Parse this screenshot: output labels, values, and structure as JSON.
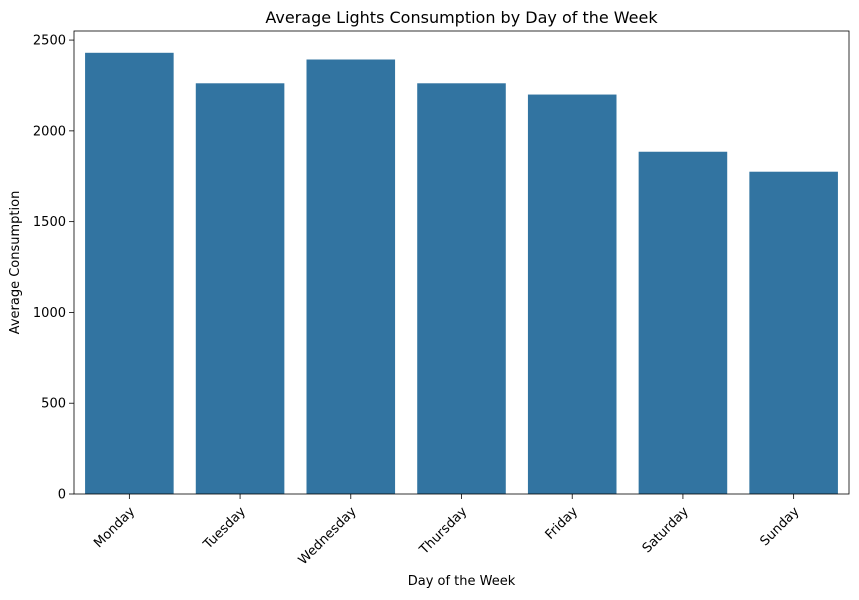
{
  "chart_data": {
    "type": "bar",
    "title": "Average Lights Consumption by Day of the Week",
    "xlabel": "Day of the Week",
    "ylabel": "Average Consumption",
    "categories": [
      "Monday",
      "Tuesday",
      "Wednesday",
      "Thursday",
      "Friday",
      "Saturday",
      "Sunday"
    ],
    "values": [
      2430,
      2262,
      2393,
      2262,
      2200,
      1885,
      1775
    ],
    "ylim": [
      0,
      2550
    ],
    "yticks": [
      0,
      500,
      1000,
      1500,
      2000,
      2500
    ],
    "bar_color": "#3274a1",
    "grid": false,
    "legend": false
  }
}
